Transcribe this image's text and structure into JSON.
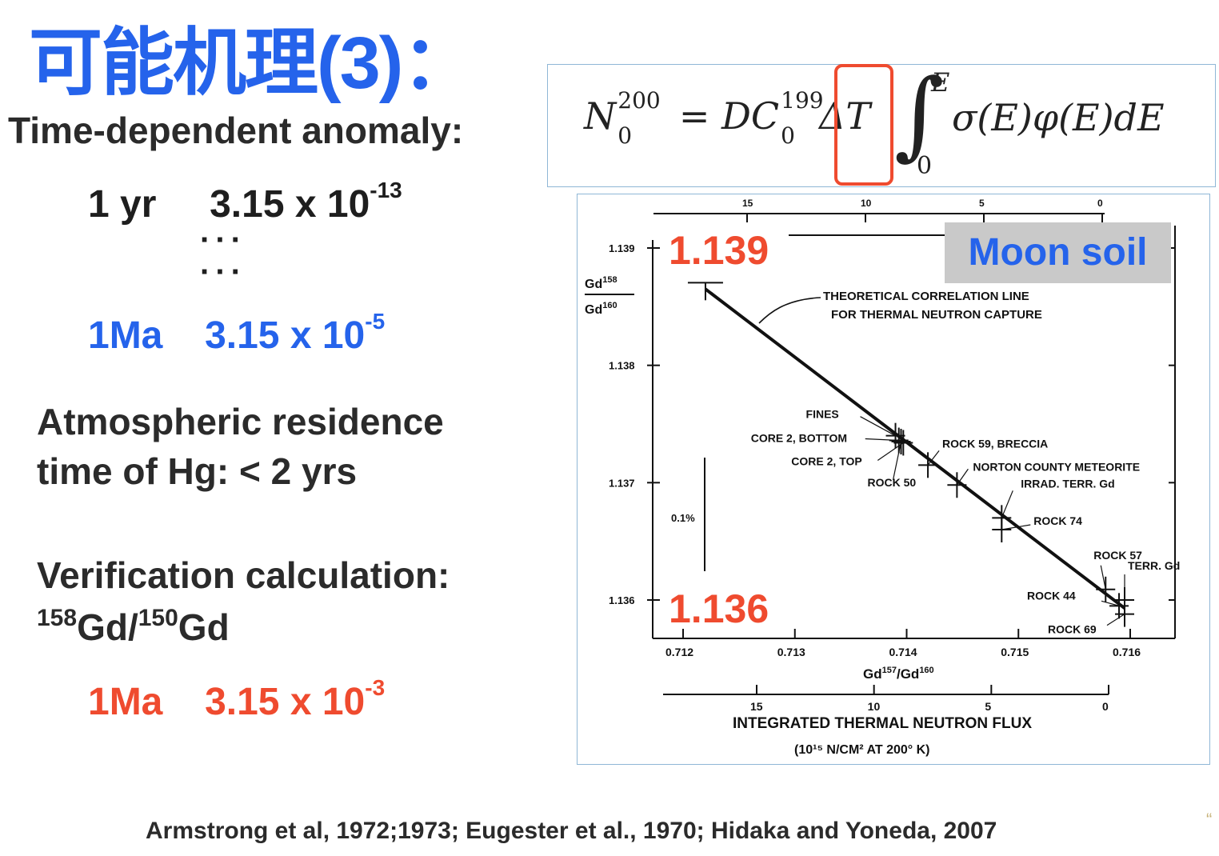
{
  "slide": {
    "title": "可能机理(3)：",
    "time_dependent": {
      "heading": "Time-dependent anomaly:",
      "row1_label": "1 yr",
      "row1_value": "3.15 x 10",
      "row1_exp": "-13",
      "dots": "···",
      "row2_label": "1Ma",
      "row2_value": "3.15 x 10",
      "row2_exp": "-5"
    },
    "atmospheric": {
      "line1": "Atmospheric residence",
      "line2": "time of Hg: < 2 yrs"
    },
    "verification": {
      "heading": "Verification calculation:",
      "iso1": "158",
      "gd1": "Gd/",
      "iso2": "150",
      "gd2": "Gd",
      "row_label": "1Ma",
      "row_value": "3.15 x 10",
      "row_exp": "-3"
    },
    "formula": {
      "lhs_symbol": "N",
      "lhs_sup": "200",
      "lhs_sub": "0",
      "eq_part": "= DC",
      "c_sup": "199",
      "c_sub": "0",
      "delta_t": "ΔT",
      "integral_upper": "E",
      "integral_lower": "0",
      "integrand": "σ(E)φ(E)dE"
    },
    "chart_overlay": {
      "top_value": "1.139",
      "bottom_value": "1.136",
      "badge": "Moon soil"
    },
    "citation": "Armstrong et al, 1972;1973; Eugester et al., 1970; Hidaka and Yoneda, 2007",
    "corner_mark": "“"
  },
  "chart_data": {
    "type": "scatter",
    "xlabel": "Gd157/Gd160",
    "ylabel": "Gd158/Gd160",
    "xlim": [
      0.712,
      0.716
    ],
    "ylim": [
      1.136,
      1.139
    ],
    "x_ticks": [
      "0.712",
      "0.713",
      "0.714",
      "0.715",
      "0.716"
    ],
    "y_ticks": [
      "1.139",
      "1.138",
      "1.137",
      "1.136"
    ],
    "top_axis_ticks": [
      "15",
      "10",
      "5",
      "0"
    ],
    "bottom_axis_ticks": [
      "15",
      "10",
      "5",
      "0"
    ],
    "bottom_axis_label_line1": "INTEGRATED THERMAL NEUTRON FLUX",
    "bottom_axis_label_line2": "(10¹⁵ N/CM² AT 200° K)",
    "scale_bar_label": "0.1%",
    "theory_line": {
      "label_line1": "THEORETICAL CORRELATION LINE",
      "label_line2": "FOR THERMAL NEUTRON CAPTURE",
      "points": [
        {
          "x": 0.7122,
          "y": 1.13865
        },
        {
          "x": 0.71595,
          "y": 1.13593
        }
      ]
    },
    "points": [
      {
        "name": "FINES",
        "x": 0.7139,
        "y": 1.1374
      },
      {
        "name": "CORE 2, BOTTOM",
        "x": 0.71393,
        "y": 1.13736
      },
      {
        "name": "CORE 2, TOP",
        "x": 0.71397,
        "y": 1.13734
      },
      {
        "name": "ROCK 50",
        "x": 0.71395,
        "y": 1.13735
      },
      {
        "name": "ROCK 59, BRECCIA",
        "x": 0.71419,
        "y": 1.13715
      },
      {
        "name": "NORTON COUNTY METEORITE",
        "x": 0.71445,
        "y": 1.13698
      },
      {
        "name": "IRRAD. TERR. Gd",
        "x": 0.71485,
        "y": 1.1367
      },
      {
        "name": "ROCK 74",
        "x": 0.71485,
        "y": 1.1366
      },
      {
        "name": "ROCK 57",
        "x": 0.71578,
        "y": 1.13609
      },
      {
        "name": "TERR. Gd",
        "x": 0.71595,
        "y": 1.136
      },
      {
        "name": "ROCK 44",
        "x": 0.7159,
        "y": 1.13595
      },
      {
        "name": "ROCK 69",
        "x": 0.71595,
        "y": 1.13588
      }
    ]
  }
}
